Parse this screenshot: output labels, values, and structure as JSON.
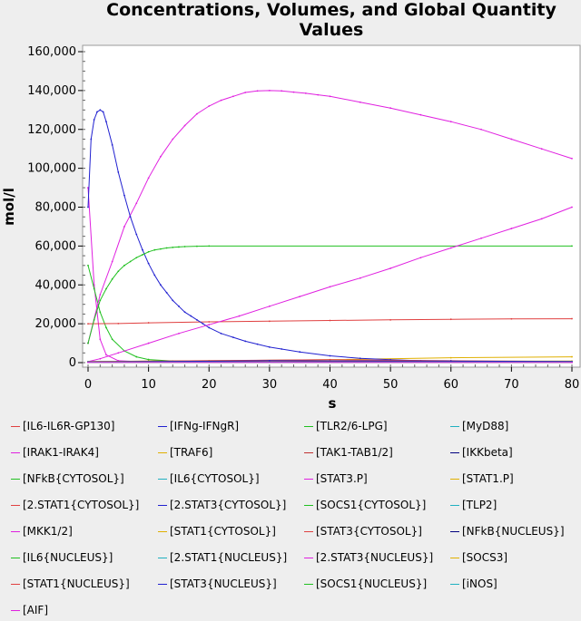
{
  "chart_data": {
    "type": "line",
    "title": "Concentrations, Volumes, and Global Quantity Values",
    "xlabel": "s",
    "ylabel": "mol/l",
    "xlim": [
      0,
      80
    ],
    "ylim": [
      0,
      160000
    ],
    "xticks": [
      0,
      10,
      20,
      30,
      40,
      50,
      60,
      70,
      80
    ],
    "xtick_labels": [
      "0",
      "10",
      "20",
      "30",
      "40",
      "50",
      "60",
      "70",
      "80"
    ],
    "yticks": [
      0,
      20000,
      40000,
      60000,
      80000,
      100000,
      120000,
      140000,
      160000
    ],
    "ytick_labels": [
      "0",
      "20,000",
      "40,000",
      "60,000",
      "80,000",
      "100,000",
      "120,000",
      "140,000",
      "160,000"
    ],
    "grid": false,
    "legend_position": "bottom",
    "series": [
      {
        "name": "[IL6-IL6R-GP130]",
        "color": "#e04040",
        "x": [
          0,
          80
        ],
        "y": [
          500,
          400
        ]
      },
      {
        "name": "[IFNg-IFNgR]",
        "color": "#2020d0",
        "x": [
          0,
          80
        ],
        "y": [
          300,
          300
        ]
      },
      {
        "name": "[TLR2/6-LPG]",
        "color": "#20c020",
        "x": [
          0,
          80
        ],
        "y": [
          200,
          200
        ]
      },
      {
        "name": "[MyD88]",
        "color": "#20b0c0",
        "x": [
          0,
          80
        ],
        "y": [
          400,
          300
        ]
      },
      {
        "name": "[IRAK1-IRAK4]",
        "color": "#e020e0",
        "x": [
          0,
          1,
          2,
          3,
          5,
          10,
          20,
          80
        ],
        "y": [
          90000,
          40000,
          12000,
          4000,
          1000,
          300,
          100,
          100
        ]
      },
      {
        "name": "[TRAF6]",
        "color": "#e0b000",
        "x": [
          0,
          10,
          20,
          40,
          60,
          80
        ],
        "y": [
          500,
          800,
          1000,
          1500,
          2500,
          3000
        ]
      },
      {
        "name": "[TAK1-TAB1/2]",
        "color": "#c03030",
        "x": [
          0,
          80
        ],
        "y": [
          300,
          300
        ]
      },
      {
        "name": "[IKKbeta]",
        "color": "#000080",
        "x": [
          0,
          80
        ],
        "y": [
          400,
          400
        ]
      },
      {
        "name": "[NFkB{CYTOSOL}]",
        "color": "#20c020",
        "x": [
          0,
          1,
          2,
          3,
          4,
          6,
          8,
          10,
          14,
          20,
          80
        ],
        "y": [
          50000,
          38000,
          26000,
          18000,
          12000,
          6000,
          3000,
          1600,
          800,
          500,
          500
        ]
      },
      {
        "name": "[IL6{CYTOSOL}]",
        "color": "#20b0c0",
        "x": [
          0,
          80
        ],
        "y": [
          200,
          200
        ]
      },
      {
        "name": "[STAT3.P]",
        "color": "#e020e0",
        "x": [
          0,
          2,
          4,
          6,
          8,
          10,
          12,
          14,
          16,
          18,
          20,
          22,
          24,
          26,
          28,
          30,
          32,
          34,
          36,
          38,
          40,
          45,
          50,
          55,
          60,
          65,
          70,
          75,
          80
        ],
        "y": [
          10000,
          35000,
          52000,
          70000,
          82000,
          95000,
          106000,
          115000,
          122000,
          128000,
          132000,
          135000,
          137000,
          139000,
          139800,
          140000,
          139800,
          139200,
          138600,
          137800,
          137000,
          134000,
          131000,
          127500,
          124000,
          120000,
          115000,
          110000,
          105000
        ]
      },
      {
        "name": "[STAT1.P]",
        "color": "#e0b000",
        "x": [
          0,
          20,
          40,
          60,
          80
        ],
        "y": [
          300,
          400,
          500,
          700,
          800
        ]
      },
      {
        "name": "[2.STAT1{CYTOSOL}]",
        "color": "#e04040",
        "x": [
          0,
          5,
          10,
          20,
          30,
          40,
          50,
          60,
          70,
          80
        ],
        "y": [
          20000,
          20100,
          20500,
          21000,
          21300,
          21700,
          22000,
          22300,
          22500,
          22600
        ]
      },
      {
        "name": "[2.STAT3{CYTOSOL}]",
        "color": "#2020d0",
        "x": [
          0,
          0.5,
          1,
          1.5,
          2,
          2.5,
          3,
          4,
          5,
          6,
          7,
          8,
          9,
          10,
          11,
          12,
          13,
          14,
          15,
          16,
          17,
          18,
          19,
          20,
          22,
          24,
          26,
          28,
          30,
          32,
          35,
          40,
          45,
          50,
          55,
          60,
          65,
          70,
          80
        ],
        "y": [
          80000,
          115000,
          125000,
          129000,
          130000,
          129000,
          124000,
          112000,
          98000,
          86000,
          75000,
          66000,
          58000,
          51000,
          45000,
          40000,
          36000,
          32000,
          29000,
          26000,
          24000,
          22000,
          20000,
          18000,
          15000,
          13000,
          11000,
          9500,
          8000,
          7000,
          5500,
          3500,
          2200,
          1500,
          1000,
          700,
          500,
          400,
          300
        ]
      },
      {
        "name": "[SOCS1{CYTOSOL}]",
        "color": "#20c020",
        "x": [
          0,
          1,
          2,
          3,
          4,
          5,
          6,
          7,
          8,
          9,
          10,
          11,
          12,
          13,
          14,
          15,
          16,
          18,
          20,
          80
        ],
        "y": [
          10000,
          22000,
          32000,
          38000,
          43000,
          47000,
          50000,
          52000,
          54000,
          55500,
          57000,
          58000,
          58500,
          59000,
          59300,
          59500,
          59700,
          59900,
          60000,
          60000
        ]
      },
      {
        "name": "[TLP2]",
        "color": "#20b0c0",
        "x": [
          0,
          80
        ],
        "y": [
          300,
          300
        ]
      },
      {
        "name": "[MKK1/2]",
        "color": "#e020e0",
        "x": [
          0,
          2,
          5,
          10,
          15,
          20,
          25,
          30,
          35,
          40,
          45,
          50,
          55,
          60,
          65,
          70,
          75,
          80
        ],
        "y": [
          500,
          2000,
          5000,
          10000,
          15000,
          19500,
          24000,
          29000,
          34000,
          39000,
          43500,
          48500,
          54000,
          59000,
          64000,
          69000,
          74000,
          80000
        ]
      },
      {
        "name": "[STAT1{CYTOSOL}]",
        "color": "#e0b000",
        "x": [
          0,
          80
        ],
        "y": [
          400,
          400
        ]
      },
      {
        "name": "[STAT3{CYTOSOL}]",
        "color": "#e04040",
        "x": [
          0,
          40,
          60,
          80
        ],
        "y": [
          500,
          1500,
          1000,
          600
        ]
      },
      {
        "name": "[NFkB{NUCLEUS}]",
        "color": "#000080",
        "x": [
          0,
          80
        ],
        "y": [
          300,
          300
        ]
      },
      {
        "name": "[IL6{NUCLEUS}]",
        "color": "#20c020",
        "x": [
          0,
          80
        ],
        "y": [
          200,
          200
        ]
      },
      {
        "name": "[2.STAT1{NUCLEUS}]",
        "color": "#20b0c0",
        "x": [
          0,
          80
        ],
        "y": [
          500,
          500
        ]
      },
      {
        "name": "[2.STAT3{NUCLEUS}]",
        "color": "#e020e0",
        "x": [
          0,
          80
        ],
        "y": [
          300,
          300
        ]
      },
      {
        "name": "[SOCS3]",
        "color": "#e0b000",
        "x": [
          0,
          80
        ],
        "y": [
          200,
          200
        ]
      },
      {
        "name": "[STAT1{NUCLEUS}]",
        "color": "#e04040",
        "x": [
          0,
          80
        ],
        "y": [
          400,
          400
        ]
      },
      {
        "name": "[STAT3{NUCLEUS}]",
        "color": "#2020d0",
        "x": [
          0,
          30,
          60,
          80
        ],
        "y": [
          300,
          1000,
          800,
          600
        ]
      },
      {
        "name": "[SOCS1{NUCLEUS}]",
        "color": "#20c020",
        "x": [
          0,
          80
        ],
        "y": [
          300,
          300
        ]
      },
      {
        "name": "[iNOS]",
        "color": "#20b0c0",
        "x": [
          0,
          80
        ],
        "y": [
          200,
          200
        ]
      },
      {
        "name": "[AIF]",
        "color": "#e020e0",
        "x": [
          0,
          80
        ],
        "y": [
          100,
          100
        ]
      }
    ]
  }
}
